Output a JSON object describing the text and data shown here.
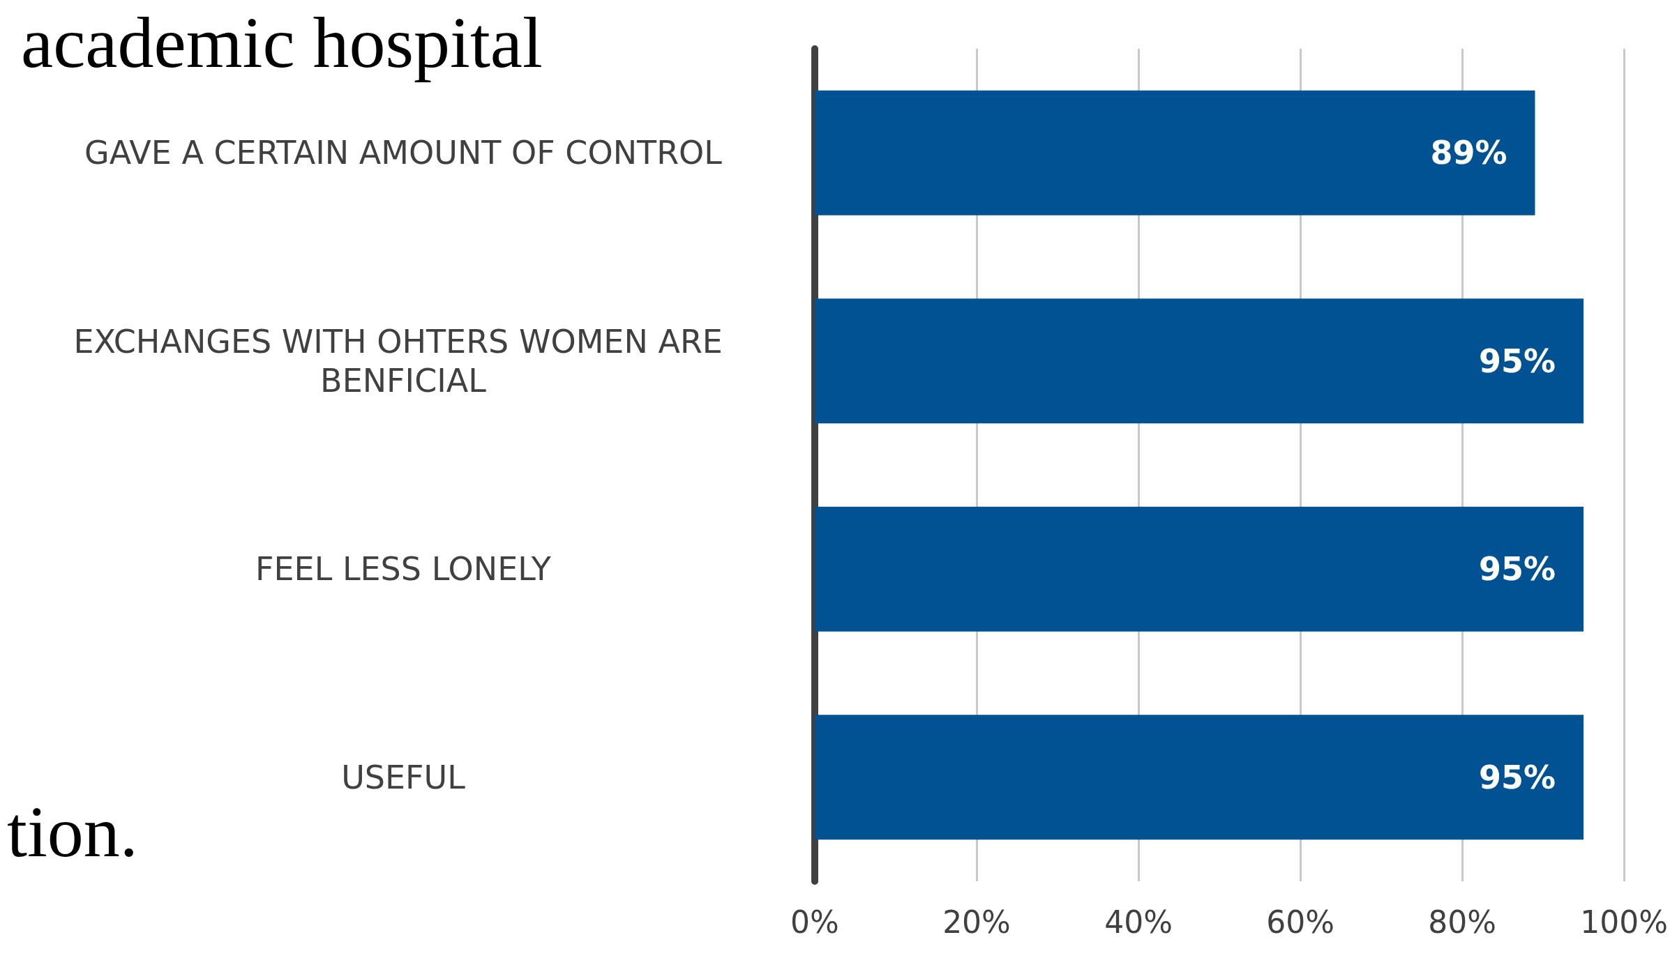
{
  "chart_data": {
    "type": "bar",
    "orientation": "horizontal",
    "categories": [
      "GAVE A CERTAIN AMOUNT OF CONTROL",
      "EXCHANGES WITH OHTERS WOMEN ARE BENFICIAL",
      "FEEL LESS LONELY",
      "USEFUL"
    ],
    "values": [
      89,
      95,
      95,
      95
    ],
    "value_labels": [
      "89%",
      "95%",
      "95%",
      "95%"
    ],
    "color": "#005293",
    "xlim": [
      0,
      100
    ],
    "xticks": [
      {
        "value": 0,
        "label": "0%"
      },
      {
        "value": 20,
        "label": "20%"
      },
      {
        "value": 40,
        "label": "40%"
      },
      {
        "value": 60,
        "label": "60%"
      },
      {
        "value": 80,
        "label": "80%"
      },
      {
        "value": 100,
        "label": "100%"
      }
    ],
    "grid": "x",
    "annotations": [
      "academic hospital",
      "tion."
    ]
  }
}
